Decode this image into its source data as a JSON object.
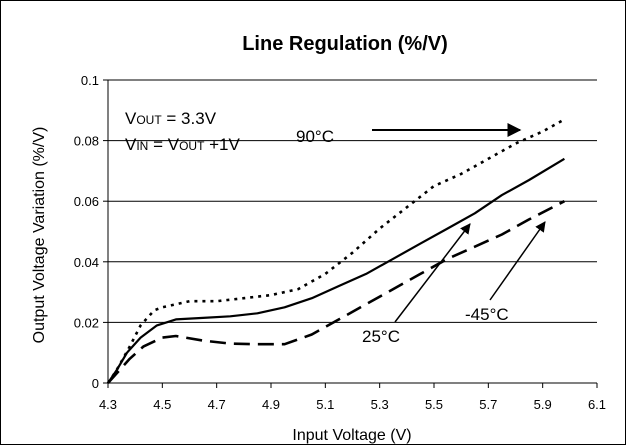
{
  "chart_data": {
    "type": "line",
    "title": "Line Regulation (%/V)",
    "xlabel": "Input Voltage (V)",
    "ylabel": "Output Voltage Variation (%/V)",
    "xlim": [
      4.3,
      6.1
    ],
    "ylim": [
      0,
      0.1
    ],
    "x_ticks": [
      "4.3",
      "4.5",
      "4.7",
      "4.9",
      "5.1",
      "5.3",
      "5.5",
      "5.7",
      "5.9",
      "6.1"
    ],
    "y_ticks": [
      "0",
      "0.02",
      "0.04",
      "0.06",
      "0.08",
      "0.1"
    ],
    "grid": "horizontal",
    "series": [
      {
        "name": "90°C",
        "style": "dotted",
        "points": [
          [
            4.3,
            0.0
          ],
          [
            4.33,
            0.004
          ],
          [
            4.38,
            0.012
          ],
          [
            4.42,
            0.019
          ],
          [
            4.47,
            0.024
          ],
          [
            4.5,
            0.025
          ],
          [
            4.6,
            0.027
          ],
          [
            4.7,
            0.027
          ],
          [
            4.8,
            0.028
          ],
          [
            4.9,
            0.029
          ],
          [
            5.0,
            0.031
          ],
          [
            5.1,
            0.036
          ],
          [
            5.2,
            0.043
          ],
          [
            5.3,
            0.051
          ],
          [
            5.4,
            0.058
          ],
          [
            5.5,
            0.065
          ],
          [
            5.6,
            0.069
          ],
          [
            5.7,
            0.074
          ],
          [
            5.8,
            0.079
          ],
          [
            5.9,
            0.083
          ],
          [
            5.98,
            0.087
          ]
        ]
      },
      {
        "name": "25°C",
        "style": "solid",
        "points": [
          [
            4.3,
            0.0
          ],
          [
            4.33,
            0.004
          ],
          [
            4.37,
            0.01
          ],
          [
            4.42,
            0.015
          ],
          [
            4.48,
            0.019
          ],
          [
            4.55,
            0.021
          ],
          [
            4.65,
            0.0215
          ],
          [
            4.75,
            0.022
          ],
          [
            4.85,
            0.023
          ],
          [
            4.95,
            0.025
          ],
          [
            5.05,
            0.028
          ],
          [
            5.15,
            0.032
          ],
          [
            5.25,
            0.036
          ],
          [
            5.35,
            0.041
          ],
          [
            5.45,
            0.046
          ],
          [
            5.55,
            0.051
          ],
          [
            5.65,
            0.056
          ],
          [
            5.75,
            0.062
          ],
          [
            5.85,
            0.067
          ],
          [
            5.98,
            0.074
          ]
        ]
      },
      {
        "name": "-45°C",
        "style": "dashed",
        "points": [
          [
            4.3,
            0.0
          ],
          [
            4.33,
            0.003
          ],
          [
            4.38,
            0.008
          ],
          [
            4.43,
            0.012
          ],
          [
            4.5,
            0.015
          ],
          [
            4.55,
            0.0155
          ],
          [
            4.65,
            0.014
          ],
          [
            4.75,
            0.013
          ],
          [
            4.85,
            0.0128
          ],
          [
            4.95,
            0.0128
          ],
          [
            5.05,
            0.016
          ],
          [
            5.15,
            0.021
          ],
          [
            5.25,
            0.026
          ],
          [
            5.35,
            0.031
          ],
          [
            5.45,
            0.036
          ],
          [
            5.55,
            0.041
          ],
          [
            5.65,
            0.045
          ],
          [
            5.75,
            0.049
          ],
          [
            5.85,
            0.054
          ],
          [
            5.98,
            0.06
          ]
        ]
      }
    ],
    "annotations": {
      "vout": {
        "main": "V",
        "sub": "OUT",
        "rest": " = 3.3V"
      },
      "vin": {
        "main1": "V",
        "sub1": "IN",
        "mid": " = V",
        "sub2": "OUT",
        "rest": " +1V"
      },
      "label_90": "90°C",
      "label_25": "25°C",
      "label_m45": "-45°C"
    }
  }
}
